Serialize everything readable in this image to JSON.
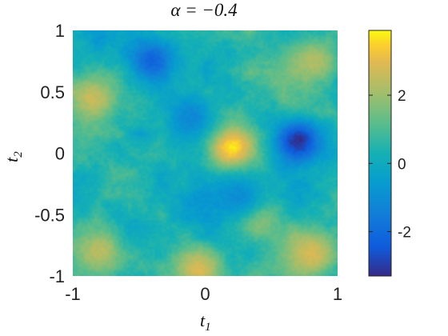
{
  "chart_data": {
    "type": "heatmap",
    "title": "α = −0.4",
    "xlabel": "t",
    "xlabel_sub": "1",
    "ylabel": "t",
    "ylabel_sub": "2",
    "x_range": [
      -1,
      1
    ],
    "y_range": [
      -1,
      1
    ],
    "x_ticks": [
      -1,
      0,
      1
    ],
    "y_ticks": [
      -1,
      -0.5,
      0,
      0.5,
      1
    ],
    "x_tick_labels": [
      "-1",
      "0",
      "1"
    ],
    "y_tick_labels": [
      "-1",
      "-0.5",
      "0",
      "0.5",
      "1"
    ],
    "colorbar": {
      "range": [
        -3.3,
        3.9
      ],
      "ticks": [
        -2,
        0,
        2
      ],
      "tick_labels": [
        "-2",
        "0",
        "2"
      ],
      "colormap": "parula"
    },
    "grid": false,
    "features": [
      {
        "kind": "high",
        "x": 0.2,
        "y": 0.05,
        "value": 3.8
      },
      {
        "kind": "high",
        "x": -0.85,
        "y": 0.45,
        "value": 2.6
      },
      {
        "kind": "high",
        "x": 0.82,
        "y": 0.75,
        "value": 2.3
      },
      {
        "kind": "high",
        "x": -0.05,
        "y": -0.95,
        "value": 2.9
      },
      {
        "kind": "high",
        "x": 0.8,
        "y": -0.82,
        "value": 2.8
      },
      {
        "kind": "high",
        "x": -0.8,
        "y": -0.8,
        "value": 2.4
      },
      {
        "kind": "high",
        "x": 0.4,
        "y": -0.55,
        "value": 2.0
      },
      {
        "kind": "low",
        "x": 0.7,
        "y": 0.1,
        "value": -3.2
      },
      {
        "kind": "low",
        "x": -0.4,
        "y": 0.75,
        "value": -2.2
      },
      {
        "kind": "low",
        "x": -0.1,
        "y": 0.3,
        "value": -1.2
      },
      {
        "kind": "low",
        "x": 0.25,
        "y": -0.35,
        "value": -1.0
      }
    ]
  }
}
